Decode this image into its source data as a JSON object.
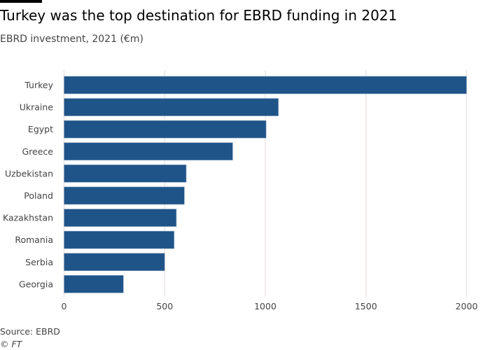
{
  "title": "Turkey was the top destination for EBRD funding in 2021",
  "subtitle": "EBRD investment, 2021 (€m)",
  "source": "Source: EBRD",
  "copyright": "© FT",
  "chart_data": {
    "type": "bar",
    "orientation": "horizontal",
    "title": "Turkey was the top destination for EBRD funding in 2021",
    "subtitle": "EBRD investment, 2021 (€m)",
    "categories": [
      "Turkey",
      "Ukraine",
      "Egypt",
      "Greece",
      "Uzbekistan",
      "Poland",
      "Kazakhstan",
      "Romania",
      "Serbia",
      "Georgia"
    ],
    "values": [
      2000,
      1065,
      1004,
      838,
      607,
      598,
      558,
      547,
      500,
      295
    ],
    "xlim": [
      0,
      2000
    ],
    "xticks": [
      0,
      500,
      1000,
      1500,
      2000
    ],
    "grid": true,
    "color": "#1f5489"
  }
}
